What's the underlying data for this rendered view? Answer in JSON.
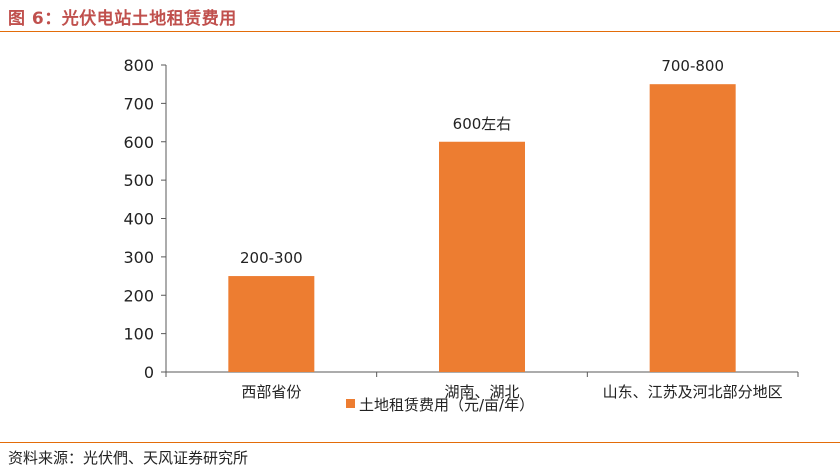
{
  "figure": {
    "title": "图 6：光伏电站土地租赁费用",
    "source": "资料来源：光伏們、天风证券研究所"
  },
  "colors": {
    "bar": "#ed7d31",
    "title": "#c0504d",
    "rule": "#e36c09",
    "axis": "#595959",
    "text": "#222222"
  },
  "chart_data": {
    "type": "bar",
    "categories": [
      "西部省份",
      "湖南、湖北",
      "山东、江苏及河北部分地区"
    ],
    "series": [
      {
        "name": "土地租赁费用（元/亩/年）",
        "values": [
          250,
          600,
          750
        ],
        "data_labels": [
          "200-300",
          "600左右",
          "700-800"
        ]
      }
    ],
    "ylim": [
      0,
      800
    ],
    "yticks": [
      "0",
      "100",
      "200",
      "300",
      "400",
      "500",
      "600",
      "700",
      "800"
    ],
    "grid": false,
    "legend": "bottom-center"
  }
}
